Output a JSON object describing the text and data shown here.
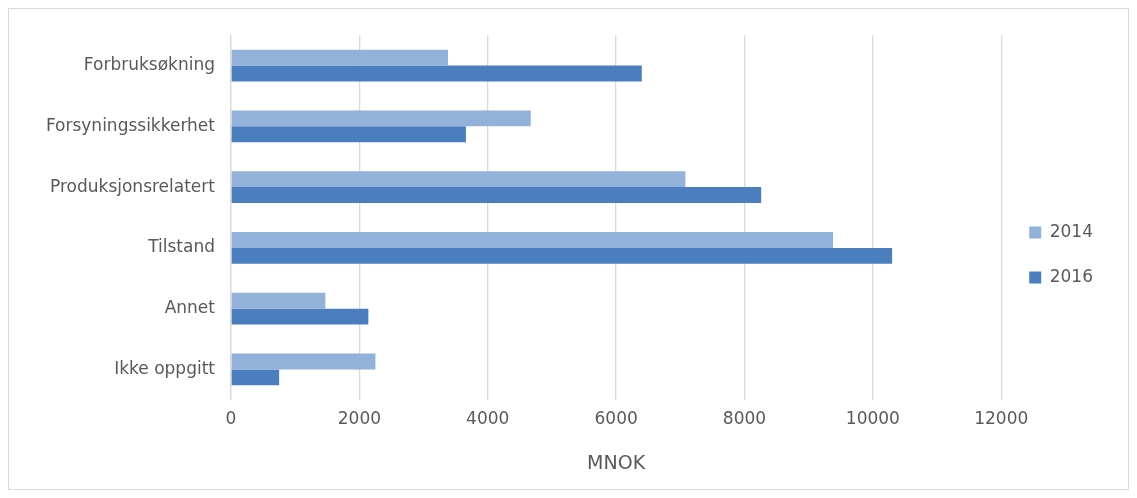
{
  "chart_data": {
    "type": "bar",
    "orientation": "horizontal",
    "xlabel": "MNOK",
    "categories": [
      "Forbruksøkning",
      "Forsyningssikkerhet",
      "Produksjonsrelatert",
      "Tilstand",
      "Annet",
      "Ikke oppgitt"
    ],
    "series": [
      {
        "name": "2014",
        "color": "#92b2d9",
        "values": [
          3380,
          4670,
          7080,
          9380,
          1470,
          2250
        ]
      },
      {
        "name": "2016",
        "color": "#4a7ebf",
        "values": [
          6400,
          3660,
          8260,
          10300,
          2140,
          750
        ]
      }
    ],
    "xlim": [
      0,
      12000
    ],
    "xticks": [
      0,
      2000,
      4000,
      6000,
      8000,
      10000,
      12000
    ],
    "grid": "x",
    "legend": "right"
  }
}
